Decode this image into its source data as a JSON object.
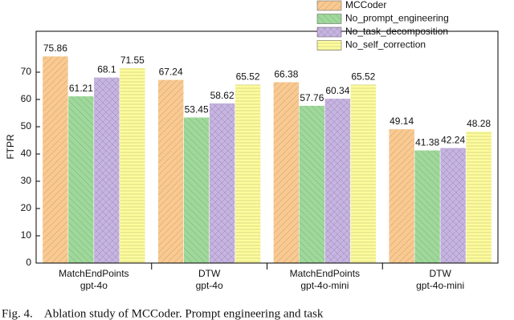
{
  "chart_data": {
    "type": "bar",
    "y_label": "FTPR",
    "categories": [
      "MatchEndPoints",
      "DTW",
      "MatchEndPoints",
      "DTW"
    ],
    "groups": [
      "gpt-4o",
      "gpt-4o",
      "gpt-4o-mini",
      "gpt-4o-mini"
    ],
    "series": [
      {
        "name": "MCCoder",
        "color": "#f9c990",
        "values": [
          75.86,
          67.24,
          66.38,
          49.14
        ]
      },
      {
        "name": "No_prompt_engineering",
        "color": "#9ed89a",
        "values": [
          61.21,
          53.45,
          57.76,
          41.38
        ]
      },
      {
        "name": "No_task_decomposition",
        "color": "#c7b4e2",
        "values": [
          68.1,
          58.62,
          60.34,
          42.24
        ]
      },
      {
        "name": "No_self_correction",
        "color": "#fdfc9c",
        "values": [
          71.55,
          65.52,
          65.52,
          48.28
        ]
      }
    ],
    "ylim": [
      0,
      85
    ],
    "yticks": [
      0,
      10,
      20,
      30,
      40,
      50,
      60,
      70
    ],
    "caption": "Fig. 4.    Ablation study of MCCoder. Prompt engineering and task"
  }
}
